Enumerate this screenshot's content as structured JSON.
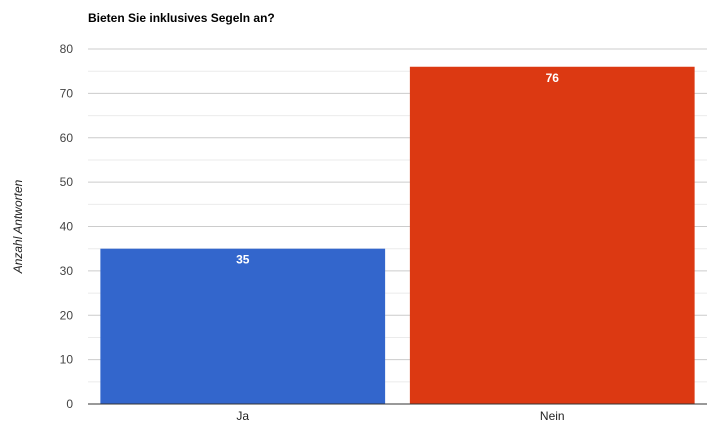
{
  "chart_data": {
    "type": "bar",
    "title": "Bieten Sie inklusives Segeln an?",
    "xlabel": "",
    "ylabel": "Anzahl Antworten",
    "categories": [
      "Ja",
      "Nein"
    ],
    "values": [
      35,
      76
    ],
    "data_labels": [
      "35",
      "76"
    ],
    "bar_colors": [
      "#3366cc",
      "#dc3912"
    ],
    "ylim": [
      0,
      80
    ],
    "yticks": [
      0,
      10,
      20,
      30,
      40,
      50,
      60,
      70,
      80
    ],
    "ytick_labels": [
      "0",
      "10",
      "20",
      "30",
      "40",
      "50",
      "60",
      "70",
      "80"
    ],
    "grid": true,
    "legend": "none"
  }
}
